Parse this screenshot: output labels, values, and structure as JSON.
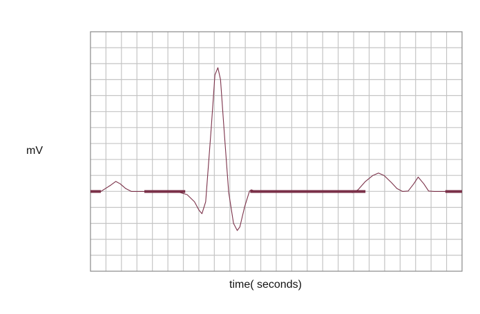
{
  "chart_data": {
    "type": "line",
    "title": "",
    "xlabel": "time( seconds)",
    "ylabel": "mV",
    "xlim": [
      0,
      1
    ],
    "ylim": [
      0,
      1
    ],
    "grid": true,
    "x_gridlines": 24,
    "y_gridlines": 15,
    "colors": {
      "trace": "#7a3048",
      "grid": "#c4c4c4",
      "frame": "#888888"
    },
    "series": [
      {
        "values": [
          {
            "x": 0.0,
            "y": 0.333
          },
          {
            "x": 0.028,
            "y": 0.333
          },
          {
            "x": 0.04,
            "y": 0.345
          },
          {
            "x": 0.055,
            "y": 0.36
          },
          {
            "x": 0.068,
            "y": 0.375
          },
          {
            "x": 0.08,
            "y": 0.365
          },
          {
            "x": 0.095,
            "y": 0.345
          },
          {
            "x": 0.11,
            "y": 0.333
          },
          {
            "x": 0.13,
            "y": 0.333
          },
          {
            "x": 0.2,
            "y": 0.333
          },
          {
            "x": 0.23,
            "y": 0.333
          },
          {
            "x": 0.26,
            "y": 0.32
          },
          {
            "x": 0.28,
            "y": 0.29
          },
          {
            "x": 0.292,
            "y": 0.255
          },
          {
            "x": 0.3,
            "y": 0.24
          },
          {
            "x": 0.31,
            "y": 0.29
          },
          {
            "x": 0.325,
            "y": 0.6
          },
          {
            "x": 0.335,
            "y": 0.82
          },
          {
            "x": 0.343,
            "y": 0.85
          },
          {
            "x": 0.35,
            "y": 0.8
          },
          {
            "x": 0.36,
            "y": 0.58
          },
          {
            "x": 0.372,
            "y": 0.33
          },
          {
            "x": 0.385,
            "y": 0.2
          },
          {
            "x": 0.395,
            "y": 0.17
          },
          {
            "x": 0.402,
            "y": 0.185
          },
          {
            "x": 0.415,
            "y": 0.27
          },
          {
            "x": 0.428,
            "y": 0.335
          },
          {
            "x": 0.433,
            "y": 0.34
          },
          {
            "x": 0.445,
            "y": 0.333
          },
          {
            "x": 0.52,
            "y": 0.333
          },
          {
            "x": 0.6,
            "y": 0.333
          },
          {
            "x": 0.67,
            "y": 0.333
          },
          {
            "x": 0.69,
            "y": 0.333
          },
          {
            "x": 0.705,
            "y": 0.328
          },
          {
            "x": 0.72,
            "y": 0.34
          },
          {
            "x": 0.74,
            "y": 0.375
          },
          {
            "x": 0.76,
            "y": 0.4
          },
          {
            "x": 0.775,
            "y": 0.41
          },
          {
            "x": 0.79,
            "y": 0.4
          },
          {
            "x": 0.81,
            "y": 0.37
          },
          {
            "x": 0.825,
            "y": 0.345
          },
          {
            "x": 0.84,
            "y": 0.333
          },
          {
            "x": 0.855,
            "y": 0.335
          },
          {
            "x": 0.87,
            "y": 0.365
          },
          {
            "x": 0.882,
            "y": 0.393
          },
          {
            "x": 0.897,
            "y": 0.365
          },
          {
            "x": 0.91,
            "y": 0.335
          },
          {
            "x": 0.925,
            "y": 0.333
          },
          {
            "x": 0.96,
            "y": 0.333
          },
          {
            "x": 1.0,
            "y": 0.333
          }
        ]
      }
    ],
    "thick_segments": [
      [
        0.0,
        0.028
      ],
      [
        0.145,
        0.255
      ],
      [
        0.43,
        0.74
      ],
      [
        0.955,
        1.0
      ]
    ]
  }
}
